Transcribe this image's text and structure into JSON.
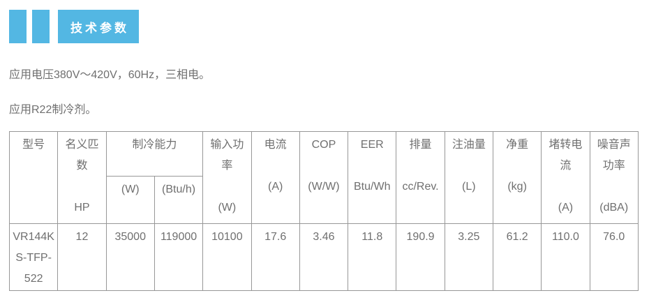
{
  "section": {
    "title": "技术参数"
  },
  "intro": {
    "line1": "应用电压380V～420V，60Hz，三相电。",
    "line2": "应用R22制冷剂。"
  },
  "table": {
    "header_row1": [
      {
        "label": "型号",
        "unit": ""
      },
      {
        "label": "名义匹数",
        "unit": "HP"
      },
      {
        "label": "制冷能力",
        "unit": ""
      },
      {
        "label": "输入功率",
        "unit": "(W)"
      },
      {
        "label": "电流",
        "unit": "(A)"
      },
      {
        "label": "COP",
        "unit": "(W/W)"
      },
      {
        "label": "EER",
        "unit": "Btu/Wh"
      },
      {
        "label": "排量",
        "unit": "cc/Rev."
      },
      {
        "label": "注油量",
        "unit": "(L)"
      },
      {
        "label": "净重",
        "unit": "(kg)"
      },
      {
        "label": "堵转电流",
        "unit": "(A)"
      },
      {
        "label": "噪音声功率",
        "unit": "(dBA)"
      }
    ],
    "header_row2": [
      "(W)",
      "(Btu/h)"
    ],
    "data_row": [
      "VR144KS-TFP-522",
      "12",
      "35000",
      "119000",
      "10100",
      "17.6",
      "3.46",
      "11.8",
      "190.9",
      "3.25",
      "61.2",
      "110.0",
      "76.0"
    ]
  },
  "colors": {
    "accent": "#53b7e3",
    "banner_text": "#ffffff",
    "body_text": "#6f6f6f",
    "table_border": "#979797"
  }
}
